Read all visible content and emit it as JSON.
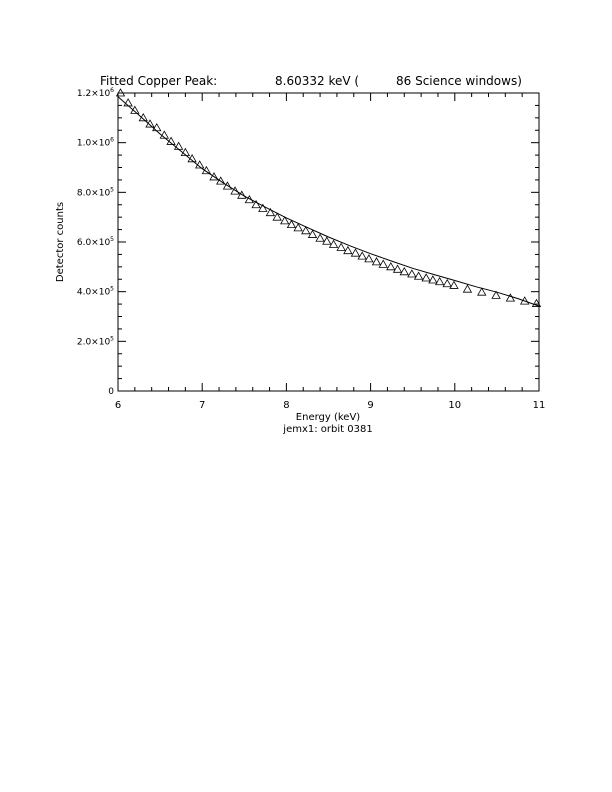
{
  "title": {
    "prefix": "Fitted Copper Peak:",
    "energy": "8.60332 keV (",
    "windows": "86 Science windows)"
  },
  "caption": "jemx1: orbit 0381",
  "chart_data": {
    "type": "scatter",
    "xlabel": "Energy (keV)",
    "ylabel": "Detector counts",
    "xlim": [
      6,
      11
    ],
    "ylim": [
      0,
      1200000
    ],
    "x_ticks": [
      {
        "value": 6,
        "label": "6"
      },
      {
        "value": 7,
        "label": "7"
      },
      {
        "value": 8,
        "label": "8"
      },
      {
        "value": 9,
        "label": "9"
      },
      {
        "value": 10,
        "label": "10"
      },
      {
        "value": 11,
        "label": "11"
      }
    ],
    "y_ticks": [
      {
        "value": 0,
        "mant": "0",
        "exp": ""
      },
      {
        "value": 200000,
        "mant": "2.0×10",
        "exp": "5"
      },
      {
        "value": 400000,
        "mant": "4.0×10",
        "exp": "5"
      },
      {
        "value": 600000,
        "mant": "6.0×10",
        "exp": "5"
      },
      {
        "value": 800000,
        "mant": "8.0×10",
        "exp": "5"
      },
      {
        "value": 1000000,
        "mant": "1.0×10",
        "exp": "6"
      },
      {
        "value": 1200000,
        "mant": "1.2×10",
        "exp": "6"
      }
    ],
    "grid": false,
    "series": [
      {
        "marker": "triangle",
        "x": [
          6.03,
          6.12,
          6.2,
          6.3,
          6.38,
          6.46,
          6.55,
          6.63,
          6.72,
          6.8,
          6.88,
          6.97,
          7.05,
          7.14,
          7.22,
          7.3,
          7.39,
          7.47,
          7.56,
          7.64,
          7.72,
          7.81,
          7.89,
          7.98,
          8.06,
          8.14,
          8.23,
          8.31,
          8.4,
          8.48,
          8.56,
          8.65,
          8.73,
          8.82,
          8.9,
          8.98,
          9.07,
          9.15,
          9.24,
          9.32,
          9.4,
          9.49,
          9.57,
          9.66,
          9.74,
          9.82,
          9.91,
          9.99,
          10.15,
          10.32,
          10.49,
          10.66,
          10.83,
          10.97
        ],
        "y": [
          1200000,
          1160000,
          1130000,
          1100000,
          1075000,
          1060000,
          1030000,
          1005000,
          985000,
          960000,
          935000,
          910000,
          887000,
          862000,
          845000,
          825000,
          805000,
          788000,
          770000,
          750000,
          735000,
          718000,
          700000,
          685000,
          670000,
          657000,
          645000,
          630000,
          615000,
          603000,
          590000,
          578000,
          565000,
          555000,
          543000,
          532000,
          520000,
          510000,
          500000,
          490000,
          480000,
          471000,
          462000,
          455000,
          447000,
          440000,
          432000,
          425000,
          410000,
          398000,
          385000,
          374000,
          362000,
          352000
        ]
      },
      {
        "marker": "line",
        "x": [
          6,
          6.25,
          6.5,
          6.75,
          7,
          7.25,
          7.5,
          7.75,
          8,
          8.25,
          8.5,
          8.75,
          9,
          9.25,
          9.5,
          9.75,
          10,
          10.25,
          10.5,
          10.75,
          11
        ],
        "y": [
          1185000,
          1110000,
          1035000,
          965000,
          895000,
          838000,
          785000,
          740000,
          697000,
          658000,
          620000,
          585000,
          553000,
          523000,
          494000,
          469000,
          445000,
          420000,
          398000,
          372000,
          342000
        ]
      }
    ]
  }
}
